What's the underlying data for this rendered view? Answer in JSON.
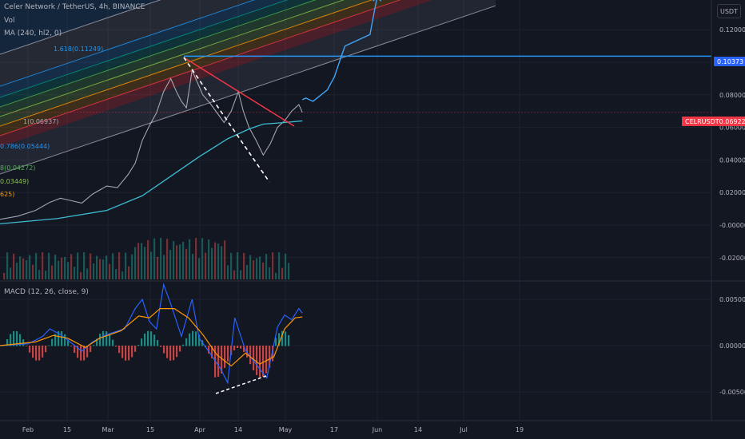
{
  "legend": {
    "symbol": "Celer Network / TetherUS, 4h, BINANCE",
    "vol": "Vol",
    "ma": "MA (240, hl2, 0)",
    "macd": "MACD (12, 26, close, 9)"
  },
  "currency_button": "USDT",
  "price_tag_line": "0.10373",
  "price_tag_symbol": "CELRUSDT",
  "price_tag_value": "0.06922",
  "colors": {
    "background": "#131722",
    "grid": "#1e222d",
    "candle_up": "#26a69a",
    "candle_down": "#ef5350",
    "ma": "#3dbbd0",
    "macd_line": "#2962ff",
    "signal_line": "#ff9800",
    "accent_blue": "#2962ff",
    "price_red": "#f23645",
    "projection": "#42a5f5",
    "resistance_line": "#2196f3"
  },
  "fib_labels": [
    {
      "text": "1.618(0.11249)"
    },
    {
      "text": "1(0.06937)"
    },
    {
      "text": "0.786(0.05444)"
    },
    {
      "text": "8(0.04272)"
    },
    {
      "text": "0.03449)"
    },
    {
      "text": "625)"
    }
  ],
  "chart_data": {
    "type": "candlestick",
    "price_axis_labels": [
      "0.12000",
      "0.10000",
      "0.08000",
      "0.06000",
      "0.04000",
      "0.02000",
      "-0.00000",
      "-0.02000"
    ],
    "price_axis_values": [
      0.12,
      0.1,
      0.08,
      0.06,
      0.04,
      0.02,
      0.0,
      -0.02
    ],
    "macd_axis_labels": [
      "0.00500",
      "0.00000",
      "-0.00500"
    ],
    "macd_axis_values": [
      0.005,
      0.0,
      -0.005
    ],
    "time_axis_labels": [
      "Feb",
      "15",
      "Mar",
      "15",
      "Apr",
      "14",
      "May",
      "17",
      "Jun",
      "14",
      "Jul",
      "19"
    ],
    "price_close_path": [
      [
        0.0,
        0.0035
      ],
      [
        0.025,
        0.0055
      ],
      [
        0.05,
        0.009
      ],
      [
        0.07,
        0.014
      ],
      [
        0.085,
        0.0165
      ],
      [
        0.1,
        0.015
      ],
      [
        0.115,
        0.0135
      ],
      [
        0.13,
        0.019
      ],
      [
        0.15,
        0.024
      ],
      [
        0.165,
        0.023
      ],
      [
        0.18,
        0.031
      ],
      [
        0.19,
        0.038
      ],
      [
        0.2,
        0.052
      ],
      [
        0.21,
        0.061
      ],
      [
        0.22,
        0.069
      ],
      [
        0.23,
        0.082
      ],
      [
        0.24,
        0.09
      ],
      [
        0.248,
        0.082
      ],
      [
        0.255,
        0.076
      ],
      [
        0.262,
        0.072
      ],
      [
        0.27,
        0.095
      ],
      [
        0.278,
        0.087
      ],
      [
        0.285,
        0.08
      ],
      [
        0.295,
        0.075
      ],
      [
        0.305,
        0.069
      ],
      [
        0.315,
        0.063
      ],
      [
        0.325,
        0.07
      ],
      [
        0.335,
        0.082
      ],
      [
        0.342,
        0.07
      ],
      [
        0.35,
        0.06
      ],
      [
        0.36,
        0.052
      ],
      [
        0.37,
        0.043
      ],
      [
        0.38,
        0.05
      ],
      [
        0.39,
        0.06
      ],
      [
        0.4,
        0.064
      ],
      [
        0.41,
        0.07
      ],
      [
        0.42,
        0.074
      ],
      [
        0.425,
        0.0692
      ]
    ],
    "ma_path": [
      [
        0.0,
        0.0008
      ],
      [
        0.08,
        0.004
      ],
      [
        0.15,
        0.009
      ],
      [
        0.2,
        0.018
      ],
      [
        0.24,
        0.03
      ],
      [
        0.28,
        0.042
      ],
      [
        0.32,
        0.053
      ],
      [
        0.35,
        0.059
      ],
      [
        0.37,
        0.062
      ],
      [
        0.4,
        0.063
      ],
      [
        0.425,
        0.064
      ]
    ],
    "resistance_level": 0.10373,
    "last_price": 0.06922,
    "projection_path": [
      [
        0.425,
        0.077
      ],
      [
        0.43,
        0.078
      ],
      [
        0.44,
        0.076
      ],
      [
        0.46,
        0.083
      ],
      [
        0.47,
        0.091
      ],
      [
        0.48,
        0.104
      ],
      [
        0.485,
        0.11
      ],
      [
        0.5,
        0.113
      ],
      [
        0.52,
        0.117
      ],
      [
        0.53,
        0.14
      ]
    ],
    "macd_line": [
      [
        0.0,
        0.0
      ],
      [
        0.04,
        0.0002
      ],
      [
        0.06,
        0.001
      ],
      [
        0.07,
        0.0018
      ],
      [
        0.085,
        0.0012
      ],
      [
        0.1,
        0.0003
      ],
      [
        0.115,
        -0.0006
      ],
      [
        0.13,
        0.0004
      ],
      [
        0.15,
        0.0012
      ],
      [
        0.175,
        0.0018
      ],
      [
        0.19,
        0.004
      ],
      [
        0.2,
        0.005
      ],
      [
        0.21,
        0.0026
      ],
      [
        0.22,
        0.0018
      ],
      [
        0.23,
        0.0066
      ],
      [
        0.24,
        0.0045
      ],
      [
        0.255,
        0.001
      ],
      [
        0.27,
        0.005
      ],
      [
        0.28,
        0.0008
      ],
      [
        0.295,
        -0.0008
      ],
      [
        0.31,
        -0.0025
      ],
      [
        0.32,
        -0.004
      ],
      [
        0.33,
        0.003
      ],
      [
        0.345,
        -0.0005
      ],
      [
        0.36,
        -0.002
      ],
      [
        0.375,
        -0.0035
      ],
      [
        0.39,
        0.002
      ],
      [
        0.4,
        0.0033
      ],
      [
        0.41,
        0.0028
      ],
      [
        0.42,
        0.004
      ],
      [
        0.425,
        0.0035
      ]
    ],
    "signal_line": [
      [
        0.0,
        0.0
      ],
      [
        0.05,
        0.0004
      ],
      [
        0.075,
        0.0011
      ],
      [
        0.095,
        0.0008
      ],
      [
        0.12,
        -0.0002
      ],
      [
        0.14,
        0.0008
      ],
      [
        0.17,
        0.0016
      ],
      [
        0.195,
        0.0032
      ],
      [
        0.21,
        0.003
      ],
      [
        0.225,
        0.004
      ],
      [
        0.245,
        0.004
      ],
      [
        0.265,
        0.003
      ],
      [
        0.285,
        0.0012
      ],
      [
        0.305,
        -0.001
      ],
      [
        0.325,
        -0.0022
      ],
      [
        0.345,
        -0.0008
      ],
      [
        0.365,
        -0.002
      ],
      [
        0.385,
        -0.0012
      ],
      [
        0.4,
        0.0018
      ],
      [
        0.415,
        0.003
      ],
      [
        0.425,
        0.0031
      ]
    ]
  }
}
